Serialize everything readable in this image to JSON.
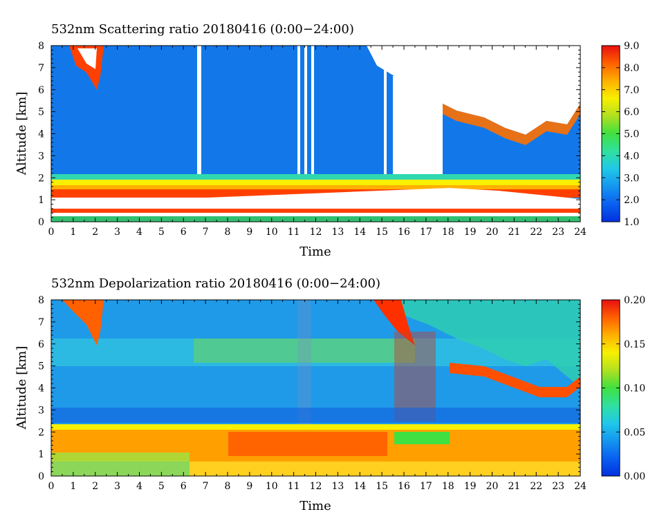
{
  "chart_data": [
    {
      "type": "heatmap",
      "title": "532nm Scattering ratio  20180416 (0:00−24:00)",
      "xlabel": "Time",
      "ylabel": "Altitude [km]",
      "xlim": [
        0,
        24
      ],
      "ylim": [
        0,
        8
      ],
      "x_ticks": [
        "0",
        "1",
        "2",
        "3",
        "4",
        "5",
        "6",
        "7",
        "8",
        "9",
        "10",
        "11",
        "12",
        "13",
        "14",
        "15",
        "16",
        "17",
        "18",
        "19",
        "20",
        "21",
        "22",
        "23",
        "24"
      ],
      "y_ticks": [
        "0",
        "1",
        "2",
        "3",
        "4",
        "5",
        "6",
        "7",
        "8"
      ],
      "colorbar": {
        "min": 1.0,
        "max": 9.0,
        "ticks": [
          "1.0",
          "2.0",
          "3.0",
          "4.0",
          "5.0",
          "6.0",
          "7.0",
          "8.0",
          "9.0"
        ]
      },
      "features": {
        "boundary_layer_top_km": 2.0,
        "aerosol_layer_km": [
          1.0,
          2.0
        ],
        "near_surface_low_ratio_km": [
          0.3,
          1.0
        ],
        "thick_cloud_times_h": [
          15.6,
          17.8
        ],
        "upper_cloud_base_after_18h_km": [
          5.6,
          3.8
        ],
        "missing_data_columns_h": [
          6.6,
          11.2,
          11.5,
          11.8,
          15.2
        ]
      }
    },
    {
      "type": "heatmap",
      "title": "532nm Depolarization ratio  20180416 (0:00−24:00)",
      "xlabel": "Time",
      "ylabel": "Altitude [km]",
      "xlim": [
        0,
        24
      ],
      "ylim": [
        0,
        8
      ],
      "x_ticks": [
        "0",
        "1",
        "2",
        "3",
        "4",
        "5",
        "6",
        "7",
        "8",
        "9",
        "10",
        "11",
        "12",
        "13",
        "14",
        "15",
        "16",
        "17",
        "18",
        "19",
        "20",
        "21",
        "22",
        "23",
        "24"
      ],
      "y_ticks": [
        "0",
        "1",
        "2",
        "3",
        "4",
        "5",
        "6",
        "7",
        "8"
      ],
      "colorbar": {
        "min": 0.0,
        "max": 0.2,
        "ticks": [
          "0.00",
          "0.05",
          "0.10",
          "0.15",
          "0.20"
        ]
      },
      "features": {
        "high_depol_layer_km": [
          0.8,
          2.1
        ],
        "free_troposphere_depol": 0.04,
        "depol_band_km": [
          5.3,
          6.0
        ]
      }
    }
  ],
  "colors": {
    "scale": [
      "#0033dd",
      "#0a60f0",
      "#1590f0",
      "#20c0e8",
      "#30d8b0",
      "#30e040",
      "#a0e020",
      "#f8f000",
      "#ffb000",
      "#ff7000",
      "#ff3000",
      "#e81010"
    ],
    "missing": "#ffffff"
  }
}
